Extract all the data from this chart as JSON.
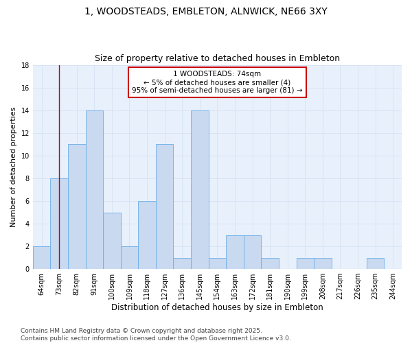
{
  "title_line1": "1, WOODSTEADS, EMBLETON, ALNWICK, NE66 3XY",
  "title_line2": "Size of property relative to detached houses in Embleton",
  "xlabel": "Distribution of detached houses by size in Embleton",
  "ylabel": "Number of detached properties",
  "footer": "Contains HM Land Registry data © Crown copyright and database right 2025.\nContains public sector information licensed under the Open Government Licence v3.0.",
  "categories": [
    "64sqm",
    "73sqm",
    "82sqm",
    "91sqm",
    "100sqm",
    "109sqm",
    "118sqm",
    "127sqm",
    "136sqm",
    "145sqm",
    "154sqm",
    "163sqm",
    "172sqm",
    "181sqm",
    "190sqm",
    "199sqm",
    "208sqm",
    "217sqm",
    "226sqm",
    "235sqm",
    "244sqm"
  ],
  "values": [
    2,
    8,
    11,
    14,
    5,
    2,
    6,
    11,
    1,
    14,
    1,
    3,
    3,
    1,
    0,
    1,
    1,
    0,
    0,
    1,
    0
  ],
  "bar_color": "#c8d9f0",
  "bar_edge_color": "#6aaee8",
  "bar_edge_width": 0.6,
  "highlight_index": 1,
  "highlight_line_color": "#cc0000",
  "annotation_text": "1 WOODSTEADS: 74sqm\n← 5% of detached houses are smaller (4)\n95% of semi-detached houses are larger (81) →",
  "annotation_box_color": "#ffffff",
  "annotation_box_edge_color": "#cc0000",
  "ylim": [
    0,
    18
  ],
  "yticks": [
    0,
    2,
    4,
    6,
    8,
    10,
    12,
    14,
    16,
    18
  ],
  "grid_color": "#d0dff0",
  "background_color": "#e8f0fc",
  "title_fontsize": 10,
  "subtitle_fontsize": 9,
  "xlabel_fontsize": 8.5,
  "ylabel_fontsize": 8,
  "tick_fontsize": 7,
  "annotation_fontsize": 7.5,
  "footer_fontsize": 6.5
}
